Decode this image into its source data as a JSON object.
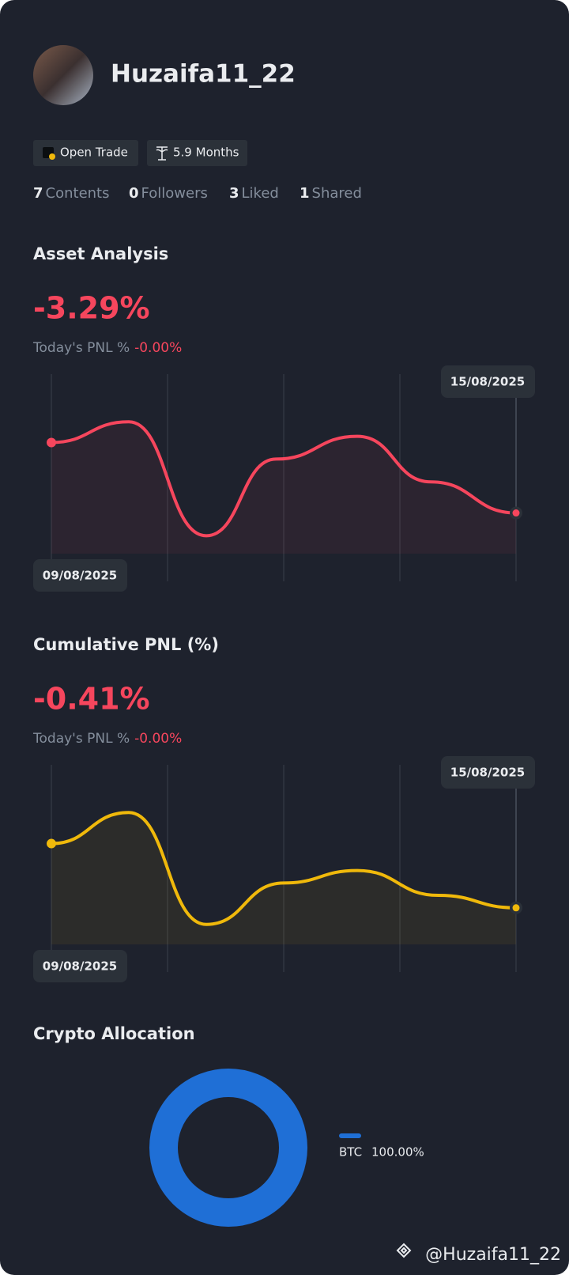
{
  "profile": {
    "name": "Huzaifa11_22",
    "badges": [
      "Open Trade",
      "5.9 Months"
    ],
    "stats": [
      {
        "value": "7",
        "label": "Contents"
      },
      {
        "value": "0",
        "label": "Followers"
      },
      {
        "value": "3",
        "label": "Liked"
      },
      {
        "value": "1",
        "label": "Shared"
      }
    ]
  },
  "asset_analysis": {
    "title": "Asset Analysis",
    "value": "-3.29%",
    "today_label": "Today's PNL %",
    "today_value": "-0.00%",
    "chart": {
      "type": "line",
      "color": "#f6465d",
      "x": [
        0,
        1,
        2,
        2.9,
        3.95,
        4.9,
        6
      ],
      "values": [
        67,
        77,
        22,
        59,
        70,
        48,
        33
      ],
      "xlim": [
        0,
        6
      ],
      "ylim": [
        0,
        100
      ],
      "start_label": "09/08/2025",
      "end_label": "15/08/2025"
    }
  },
  "cumulative_pnl": {
    "title": "Cumulative PNL (%)",
    "value": "-0.41%",
    "today_label": "Today's PNL %",
    "today_value": "-0.00%",
    "chart": {
      "type": "line",
      "color": "#f0b90b",
      "x": [
        0,
        1,
        2,
        3,
        3.95,
        5,
        6
      ],
      "values": [
        62,
        77,
        23,
        43,
        49,
        37,
        31
      ],
      "xlim": [
        0,
        6
      ],
      "ylim": [
        0,
        100
      ],
      "start_label": "09/08/2025",
      "end_label": "15/08/2025"
    }
  },
  "crypto_allocation": {
    "title": "Crypto Allocation",
    "chart": {
      "type": "pie",
      "categories": [
        "BTC"
      ],
      "values": [
        100
      ],
      "value_labels": [
        "100.00%"
      ],
      "colors": [
        "#1f6fd6"
      ]
    }
  },
  "watermark": "@Huzaifa11_22"
}
